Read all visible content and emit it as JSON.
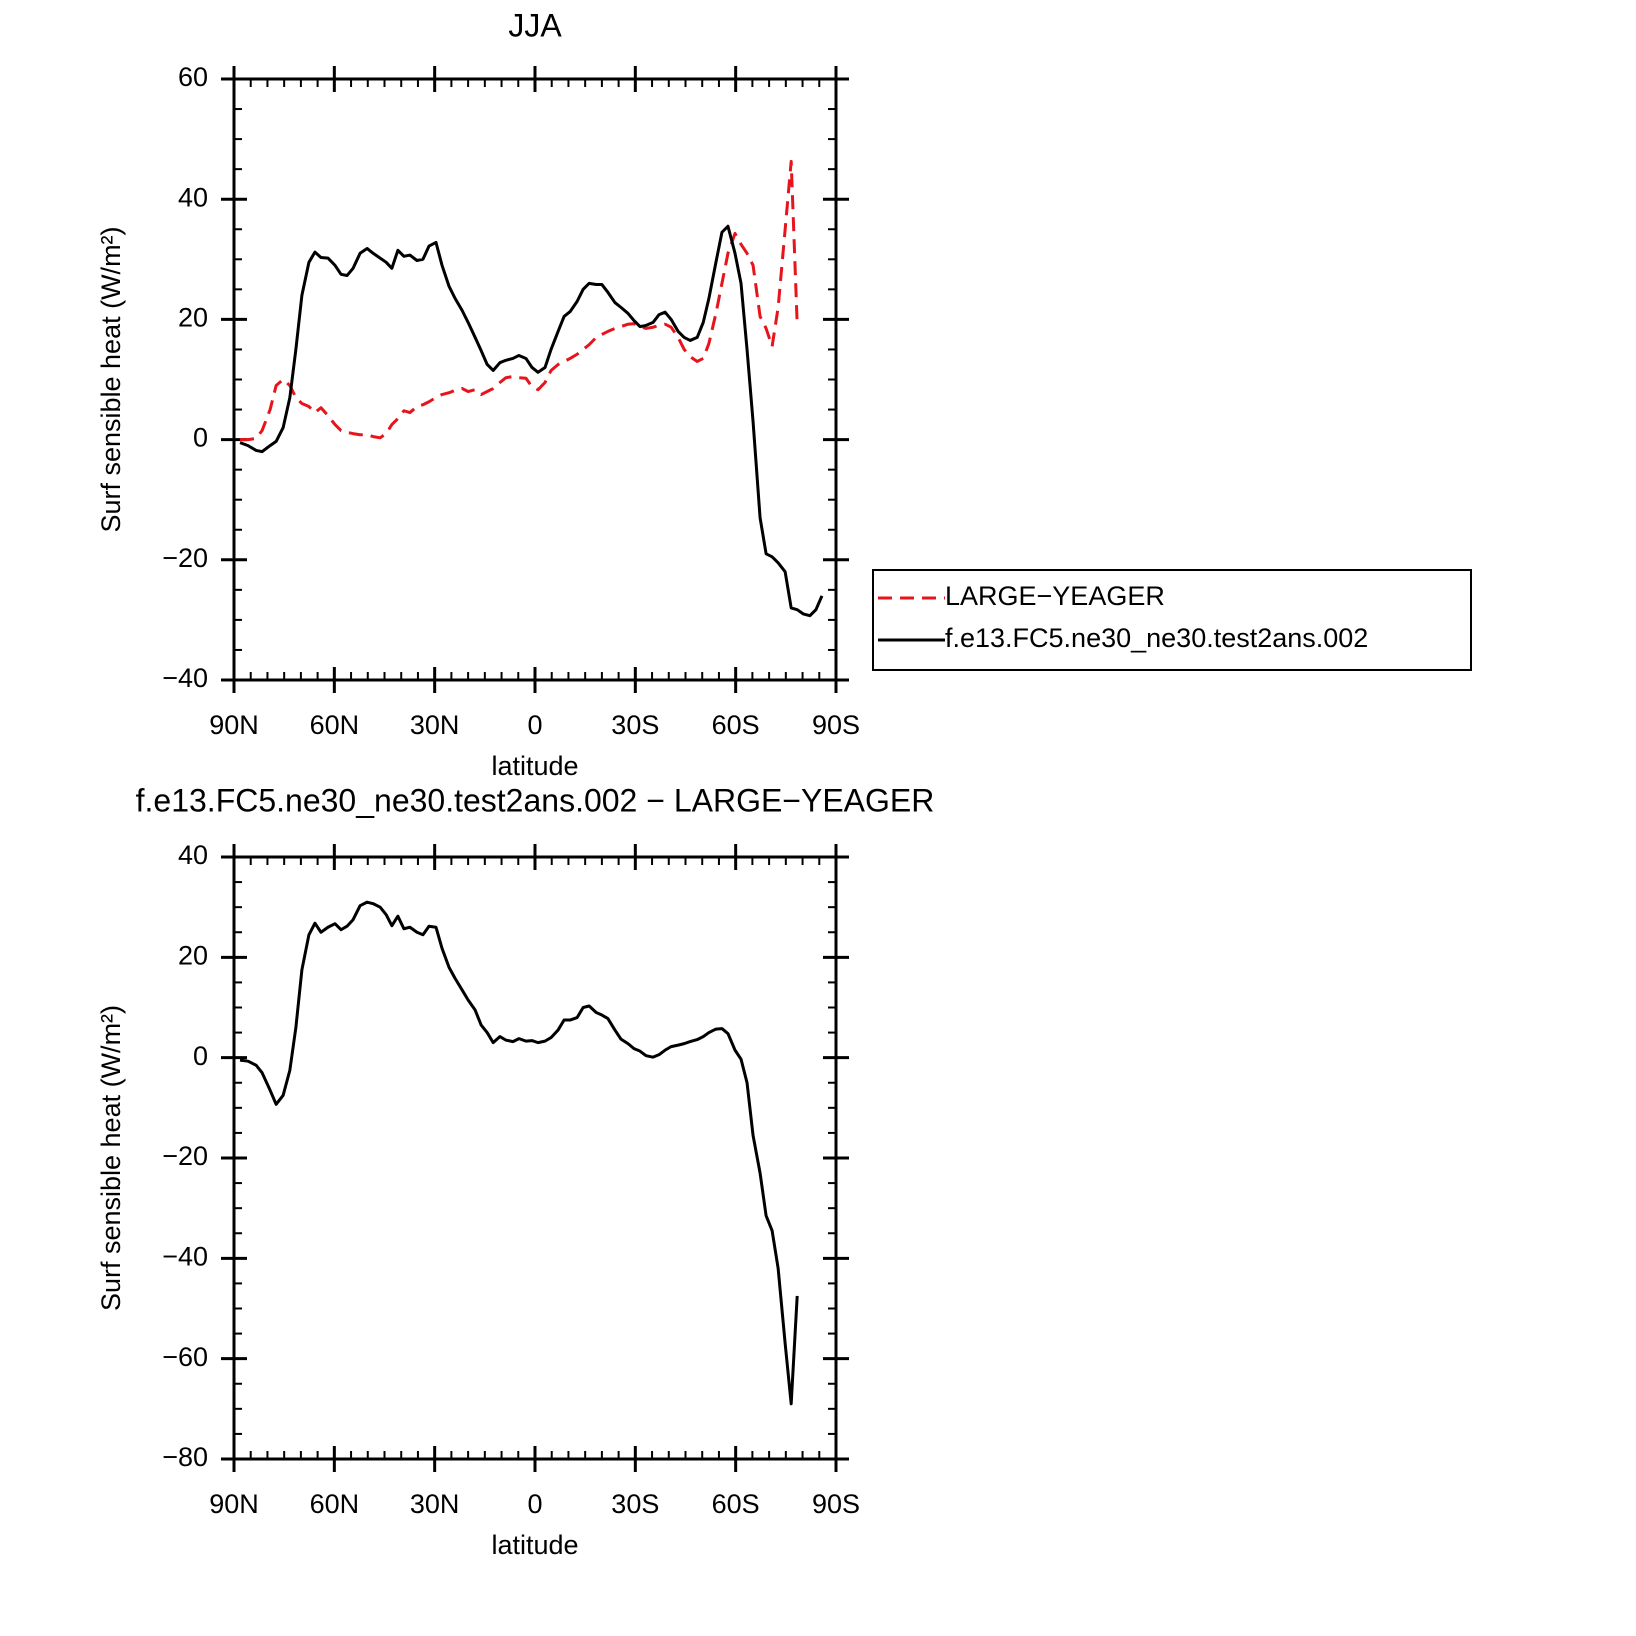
{
  "chart_data": [
    {
      "type": "line",
      "title": "JJA",
      "xlabel": "latitude",
      "ylabel": "Surf sensible heat (W/m²)",
      "xlim": [
        90,
        -90
      ],
      "xticks": [
        {
          "value": 90,
          "label": "90N"
        },
        {
          "value": 60,
          "label": "60N"
        },
        {
          "value": 30,
          "label": "30N"
        },
        0,
        {
          "value": -30,
          "label": "30S"
        },
        {
          "value": -60,
          "label": "60S"
        },
        {
          "value": -90,
          "label": "90S"
        }
      ],
      "xminor": 5,
      "ylim": [
        -40,
        60
      ],
      "yticks": [
        {
          "value": -40,
          "label": "−40"
        },
        {
          "value": -20,
          "label": "−20"
        },
        0,
        20,
        40,
        60
      ],
      "yminor": 5,
      "legend": "right",
      "series": [
        {
          "name": "LARGE−YEAGER",
          "color": "#e8141b",
          "dashed": true,
          "x": [
            88.2,
            85.8,
            83.4,
            81.6,
            79.2,
            77.4,
            75.3,
            73.3,
            71.5,
            69.7,
            67.6,
            65.8,
            64,
            61.9,
            59.8,
            58,
            56.2,
            54.4,
            52.3,
            50.2,
            48.4,
            46.3,
            44.5,
            42.8,
            41,
            39.2,
            37.4,
            35.3,
            33.5,
            31.7,
            29.6,
            27.8,
            25.7,
            23.9,
            21.8,
            20,
            17.9,
            16.1,
            14.3,
            12.5,
            10.5,
            8.7,
            6.6,
            4.8,
            2.7,
            0.9,
            -0.9,
            -3,
            -4.8,
            -6.9,
            -8.7,
            -10.5,
            -12.6,
            -14.4,
            -16.2,
            -18.3,
            -20,
            -21.8,
            -23.9,
            -25.7,
            -27.8,
            -29.6,
            -31.4,
            -33.2,
            -35.3,
            -37.1,
            -38.9,
            -40.7,
            -42.8,
            -44.6,
            -46.4,
            -48.5,
            -50.3,
            -52,
            -54.1,
            -55.9,
            -57.7,
            -59.8,
            -61.6,
            -63.4,
            -65.2,
            -67.3,
            -69.1,
            -70.9,
            -72.7,
            -74.8,
            -76.6,
            -78.4
          ],
          "values": [
            0,
            0,
            0.2,
            1.5,
            5,
            9,
            10,
            9,
            7,
            6,
            5.5,
            4.5,
            5.3,
            4,
            2.5,
            1.5,
            1.2,
            1,
            0.8,
            0.8,
            0.5,
            0.3,
            1,
            2.5,
            3.5,
            4.8,
            4.5,
            5.5,
            5.8,
            6.3,
            7,
            7.5,
            7.8,
            8.2,
            8.5,
            8,
            8.3,
            7.5,
            8,
            8.5,
            9.5,
            10.3,
            10.5,
            10.3,
            10.2,
            8.8,
            8.3,
            9.5,
            11.5,
            12.5,
            13,
            13.5,
            14.2,
            15,
            15.8,
            17,
            17.5,
            18,
            18.5,
            18.8,
            19.2,
            19.3,
            18.8,
            18.5,
            18.7,
            19,
            19.2,
            18.7,
            17,
            15,
            13.8,
            13,
            13.5,
            16,
            21,
            26,
            31,
            34.3,
            32.5,
            31,
            29,
            20.5,
            18.5,
            15.5,
            22,
            35,
            46.3,
            19.2
          ]
        },
        {
          "name": "f.e13.FC5.ne30_ne30.test2ans.002",
          "color": "#000000",
          "dashed": false,
          "x": [
            88.2,
            85.8,
            83.4,
            81.6,
            79.2,
            77.4,
            75.3,
            73.3,
            71.5,
            69.7,
            67.6,
            65.8,
            64,
            61.9,
            59.8,
            58,
            56.2,
            54.4,
            52.3,
            50.2,
            48.4,
            46.3,
            44.5,
            42.8,
            41,
            39.2,
            37.4,
            35.3,
            33.5,
            31.7,
            29.6,
            27.8,
            25.7,
            23.9,
            21.8,
            20,
            17.9,
            16.1,
            14.3,
            12.5,
            10.5,
            8.7,
            6.6,
            4.8,
            2.7,
            0.9,
            -0.9,
            -3,
            -4.8,
            -6.9,
            -8.7,
            -10.5,
            -12.6,
            -14.4,
            -16.2,
            -18.3,
            -20,
            -21.8,
            -23.9,
            -25.7,
            -27.8,
            -29.6,
            -31.4,
            -33.2,
            -35.3,
            -37.1,
            -38.9,
            -40.7,
            -42.8,
            -44.6,
            -46.4,
            -48.5,
            -50.3,
            -52,
            -54.1,
            -55.9,
            -57.7,
            -59.8,
            -61.6,
            -63.4,
            -65.2,
            -67.3,
            -69.1,
            -70.9,
            -72.7,
            -74.8,
            -76.6,
            -78.4,
            -80.2,
            -82.2,
            -84,
            -85.8
          ],
          "values": [
            -0.5,
            -1,
            -1.8,
            -2,
            -1,
            -0.3,
            2,
            7,
            15,
            24,
            29.5,
            31.2,
            30.3,
            30.2,
            29,
            27.5,
            27.3,
            28.5,
            31,
            31.8,
            31,
            30.2,
            29.5,
            28.5,
            31.5,
            30.5,
            30.7,
            29.8,
            30,
            32.2,
            32.8,
            29,
            25.5,
            23.5,
            21.5,
            19.5,
            17,
            14.8,
            12.5,
            11.5,
            12.8,
            13.2,
            13.5,
            14,
            13.5,
            12,
            11.2,
            12,
            15,
            18,
            20.5,
            21.3,
            23,
            25,
            26,
            25.8,
            25.8,
            24.5,
            22.8,
            22,
            21,
            19.8,
            18.8,
            19,
            19.5,
            20.8,
            21.2,
            20,
            18,
            17,
            16.5,
            17,
            19.5,
            23.5,
            29.5,
            34.5,
            35.5,
            31,
            26,
            15,
            3,
            -13,
            -19,
            -19.5,
            -20.5,
            -22,
            -28,
            -28.3,
            -29,
            -29.3,
            -28.3,
            -26
          ]
        }
      ]
    },
    {
      "type": "line",
      "title": "f.e13.FC5.ne30_ne30.test2ans.002 − LARGE−YEAGER",
      "xlabel": "latitude",
      "ylabel": "Surf sensible heat (W/m²)",
      "xlim": [
        90,
        -90
      ],
      "xticks": [
        {
          "value": 90,
          "label": "90N"
        },
        {
          "value": 60,
          "label": "60N"
        },
        {
          "value": 30,
          "label": "30N"
        },
        0,
        {
          "value": -30,
          "label": "30S"
        },
        {
          "value": -60,
          "label": "60S"
        },
        {
          "value": -90,
          "label": "90S"
        }
      ],
      "xminor": 5,
      "ylim": [
        -80,
        40
      ],
      "yticks": [
        {
          "value": -80,
          "label": "−80"
        },
        {
          "value": -60,
          "label": "−60"
        },
        {
          "value": -40,
          "label": "−40"
        },
        {
          "value": -20,
          "label": "−20"
        },
        0,
        20,
        40
      ],
      "yminor": 5,
      "color": "#000000",
      "x": [
        88.2,
        85.8,
        83.4,
        81.6,
        79.2,
        77.4,
        75.3,
        73.3,
        71.5,
        69.7,
        67.6,
        65.8,
        64,
        61.9,
        59.8,
        58,
        56.2,
        54.4,
        52.3,
        50.2,
        48.4,
        46.3,
        44.5,
        42.8,
        41,
        39.2,
        37.4,
        35.3,
        33.5,
        31.7,
        29.6,
        27.8,
        25.7,
        23.9,
        21.8,
        20,
        17.9,
        16.1,
        14.3,
        12.5,
        10.5,
        8.7,
        6.6,
        4.8,
        2.7,
        0.9,
        -0.9,
        -3,
        -4.8,
        -6.9,
        -8.7,
        -10.5,
        -12.6,
        -14.4,
        -16.2,
        -18.3,
        -20,
        -21.8,
        -23.9,
        -25.7,
        -27.8,
        -29.6,
        -31.4,
        -33.2,
        -35.3,
        -37.1,
        -38.9,
        -40.7,
        -42.8,
        -44.6,
        -46.4,
        -48.5,
        -50.3,
        -52,
        -54.1,
        -55.9,
        -57.7,
        -59.8,
        -61.6,
        -63.4,
        -65.2,
        -67.3,
        -69.1,
        -70.9,
        -72.7,
        -74.8,
        -76.6,
        -78.4
      ],
      "values": [
        -0.5,
        -0.7,
        -1.5,
        -3,
        -6.5,
        -9.3,
        -7.5,
        -2.5,
        6,
        17.5,
        24.5,
        26.8,
        25,
        26,
        26.7,
        25.5,
        26.2,
        27.5,
        30.3,
        31,
        30.7,
        30,
        28.5,
        26.3,
        28.2,
        25.7,
        26,
        25,
        24.5,
        26.2,
        26,
        21.8,
        18,
        15.8,
        13.5,
        11.5,
        9.5,
        6.5,
        5,
        3,
        4.2,
        3.5,
        3.2,
        3.8,
        3.3,
        3.4,
        3,
        3.3,
        4,
        5.5,
        7.5,
        7.5,
        8,
        10,
        10.3,
        9,
        8.5,
        7.8,
        5.5,
        3.7,
        2.8,
        1.8,
        1.3,
        0.4,
        0.1,
        0.6,
        1.5,
        2.2,
        2.5,
        2.8,
        3.2,
        3.6,
        4.2,
        5,
        5.7,
        5.8,
        4.8,
        1.5,
        -0.3,
        -5,
        -15.5,
        -23,
        -31.5,
        -34.5,
        -42,
        -57,
        -69,
        -47.5
      ]
    }
  ]
}
